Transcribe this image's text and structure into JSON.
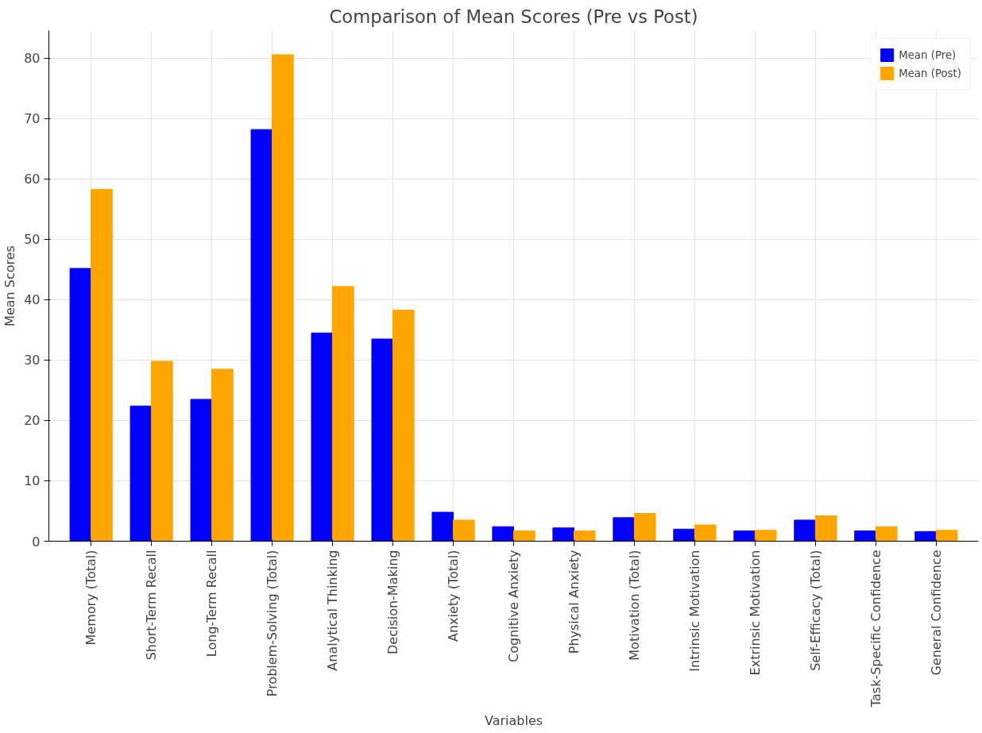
{
  "chart_data": {
    "type": "bar",
    "title": "Comparison of Mean Scores (Pre vs Post)",
    "xlabel": "Variables",
    "ylabel": "Mean Scores",
    "categories": [
      "Memory (Total)",
      "Short-Term Recall",
      "Long-Term Recall",
      "Problem-Solving (Total)",
      "Analytical Thinking",
      "Decision-Making",
      "Anxiety (Total)",
      "Cognitive Anxiety",
      "Physical Anxiety",
      "Motivation (Total)",
      "Intrinsic Motivation",
      "Extrinsic Motivation",
      "Self-Efficacy (Total)",
      "Task-Specific Confidence",
      "General Confidence"
    ],
    "series": [
      {
        "name": "Mean (Pre)",
        "color": "#0000ff",
        "values": [
          45.2,
          22.4,
          23.5,
          68.2,
          34.5,
          33.5,
          4.8,
          2.4,
          2.2,
          3.9,
          2.0,
          1.7,
          3.5,
          1.7,
          1.6
        ]
      },
      {
        "name": "Mean (Post)",
        "color": "#ffa500",
        "values": [
          58.3,
          29.8,
          28.5,
          80.6,
          42.2,
          38.3,
          3.5,
          1.7,
          1.7,
          4.6,
          2.7,
          1.8,
          4.2,
          2.4,
          1.8
        ]
      }
    ],
    "ylim": [
      0,
      84.6
    ],
    "yticks": [
      0,
      10,
      20,
      30,
      40,
      50,
      60,
      70,
      80
    ],
    "grid": true,
    "legend": "top right"
  }
}
